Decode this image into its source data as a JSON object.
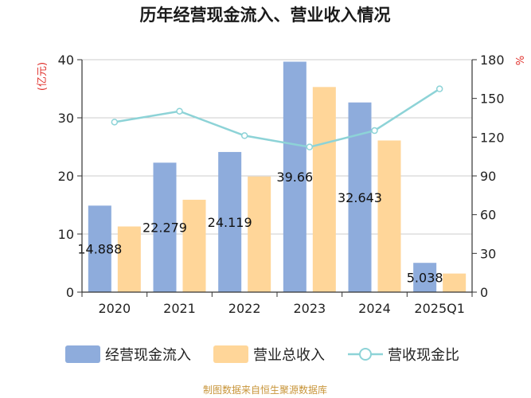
{
  "chart_data": {
    "type": "bar",
    "title": "历年经营现金流入、营业收入情况",
    "categories": [
      "2020",
      "2021",
      "2022",
      "2023",
      "2024",
      "2025Q1"
    ],
    "series": [
      {
        "name": "经营现金流入",
        "kind": "bar",
        "axis": "left",
        "color": "#8eacdc",
        "values": [
          14.888,
          22.279,
          24.119,
          39.66,
          32.643,
          5.038
        ]
      },
      {
        "name": "营业总收入",
        "kind": "bar",
        "axis": "left",
        "color": "#ffd699",
        "values": [
          11.3,
          15.9,
          19.9,
          35.3,
          26.1,
          3.2
        ]
      },
      {
        "name": "营收现金比",
        "kind": "line",
        "axis": "right",
        "color": "#8dd3d7",
        "values": [
          131.7,
          140.1,
          121.2,
          112.4,
          125.1,
          157.4
        ]
      }
    ],
    "data_labels": [
      "14.888",
      "22.279",
      "24.119",
      "39.66",
      "32.643",
      "5.038"
    ],
    "y_left": {
      "label": "(亿元)",
      "ylim": [
        0,
        40
      ],
      "ticks": [
        0,
        10,
        20,
        30,
        40
      ]
    },
    "y_right": {
      "label": "%",
      "ylim": [
        0,
        180
      ],
      "ticks": [
        0,
        30,
        60,
        90,
        120,
        150,
        180
      ]
    },
    "grid": true,
    "legend_position": "bottom"
  },
  "footer": "制图数据来自恒生聚源数据库",
  "colors": {
    "axis_label_red": "#e0302b",
    "footer": "#c8953a",
    "grid": "#cccccc",
    "axis": "#333333"
  }
}
